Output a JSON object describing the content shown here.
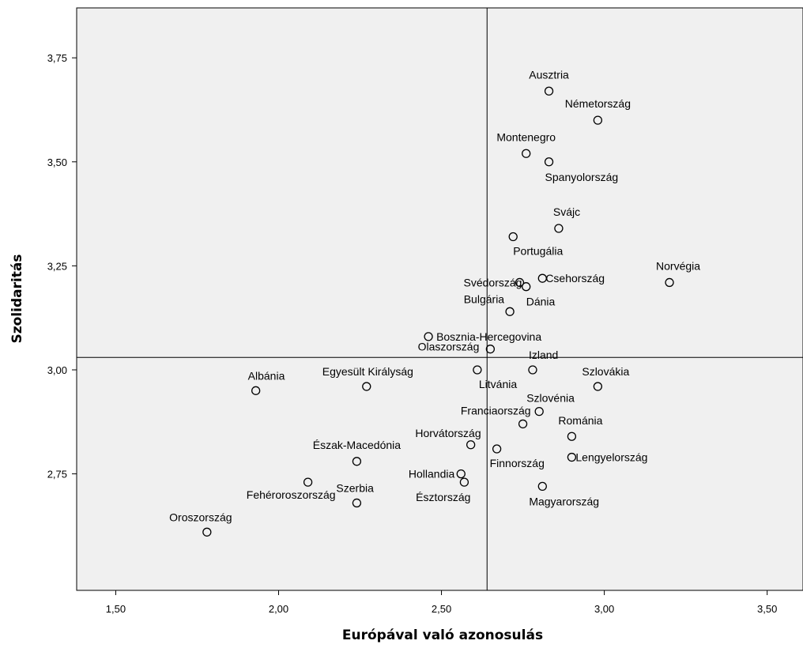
{
  "chart_data": {
    "type": "scatter",
    "xlabel": "Európával való azonosulás",
    "ylabel": "Szolidaritás",
    "xlim": [
      1.38,
      3.61
    ],
    "ylim": [
      2.47,
      3.87
    ],
    "x_ticks": [
      1.5,
      2.0,
      2.5,
      3.0,
      3.5
    ],
    "x_tick_labels": [
      "1,50",
      "2,00",
      "2,50",
      "3,00",
      "3,50"
    ],
    "y_ticks": [
      2.75,
      3.0,
      3.25,
      3.5,
      3.75
    ],
    "y_tick_labels": [
      "2,75",
      "3,00",
      "3,25",
      "3,50",
      "3,75"
    ],
    "reference_lines": {
      "x": 2.64,
      "y": 3.03
    },
    "grid": false,
    "plot_background": "#f0f0f0",
    "marker_color": "#000000",
    "points": [
      {
        "label": "Ausztria",
        "x": 2.83,
        "y": 3.67
      },
      {
        "label": "Németország",
        "x": 2.98,
        "y": 3.6
      },
      {
        "label": "Montenegro",
        "x": 2.76,
        "y": 3.52
      },
      {
        "label": "Spanyolország",
        "x": 2.83,
        "y": 3.5
      },
      {
        "label": "Svájc",
        "x": 2.86,
        "y": 3.34
      },
      {
        "label": "Portugália",
        "x": 2.72,
        "y": 3.32
      },
      {
        "label": "Norvégia",
        "x": 3.2,
        "y": 3.21
      },
      {
        "label": "Svédország",
        "x": 2.74,
        "y": 3.21
      },
      {
        "label": "Dánia",
        "x": 2.76,
        "y": 3.2
      },
      {
        "label": "Csehország",
        "x": 2.81,
        "y": 3.22
      },
      {
        "label": "Bulgária",
        "x": 2.71,
        "y": 3.14
      },
      {
        "label": "Bosznia-Hercegovina",
        "x": 2.46,
        "y": 3.08
      },
      {
        "label": "Olaszország",
        "x": 2.65,
        "y": 3.05
      },
      {
        "label": "Izland",
        "x": 2.78,
        "y": 3.0
      },
      {
        "label": "Litvánia",
        "x": 2.61,
        "y": 3.0
      },
      {
        "label": "Albánia",
        "x": 1.93,
        "y": 2.95
      },
      {
        "label": "Egyesült Királyság",
        "x": 2.27,
        "y": 2.96
      },
      {
        "label": "Szlovákia",
        "x": 2.98,
        "y": 2.96
      },
      {
        "label": "Szlovénia",
        "x": 2.8,
        "y": 2.9
      },
      {
        "label": "Franciaország",
        "x": 2.75,
        "y": 2.87
      },
      {
        "label": "Románia",
        "x": 2.9,
        "y": 2.84
      },
      {
        "label": "Horvátország",
        "x": 2.59,
        "y": 2.82
      },
      {
        "label": "Finnország",
        "x": 2.67,
        "y": 2.81
      },
      {
        "label": "Lengyelország",
        "x": 2.9,
        "y": 2.79
      },
      {
        "label": "Észak-Macedónia",
        "x": 2.24,
        "y": 2.78
      },
      {
        "label": "Hollandia",
        "x": 2.56,
        "y": 2.75
      },
      {
        "label": "Észtország",
        "x": 2.57,
        "y": 2.73
      },
      {
        "label": "Fehéroroszország",
        "x": 2.09,
        "y": 2.73
      },
      {
        "label": "Magyarország",
        "x": 2.81,
        "y": 2.72
      },
      {
        "label": "Szerbia",
        "x": 2.24,
        "y": 2.68
      },
      {
        "label": "Oroszország",
        "x": 1.78,
        "y": 2.61
      }
    ]
  }
}
